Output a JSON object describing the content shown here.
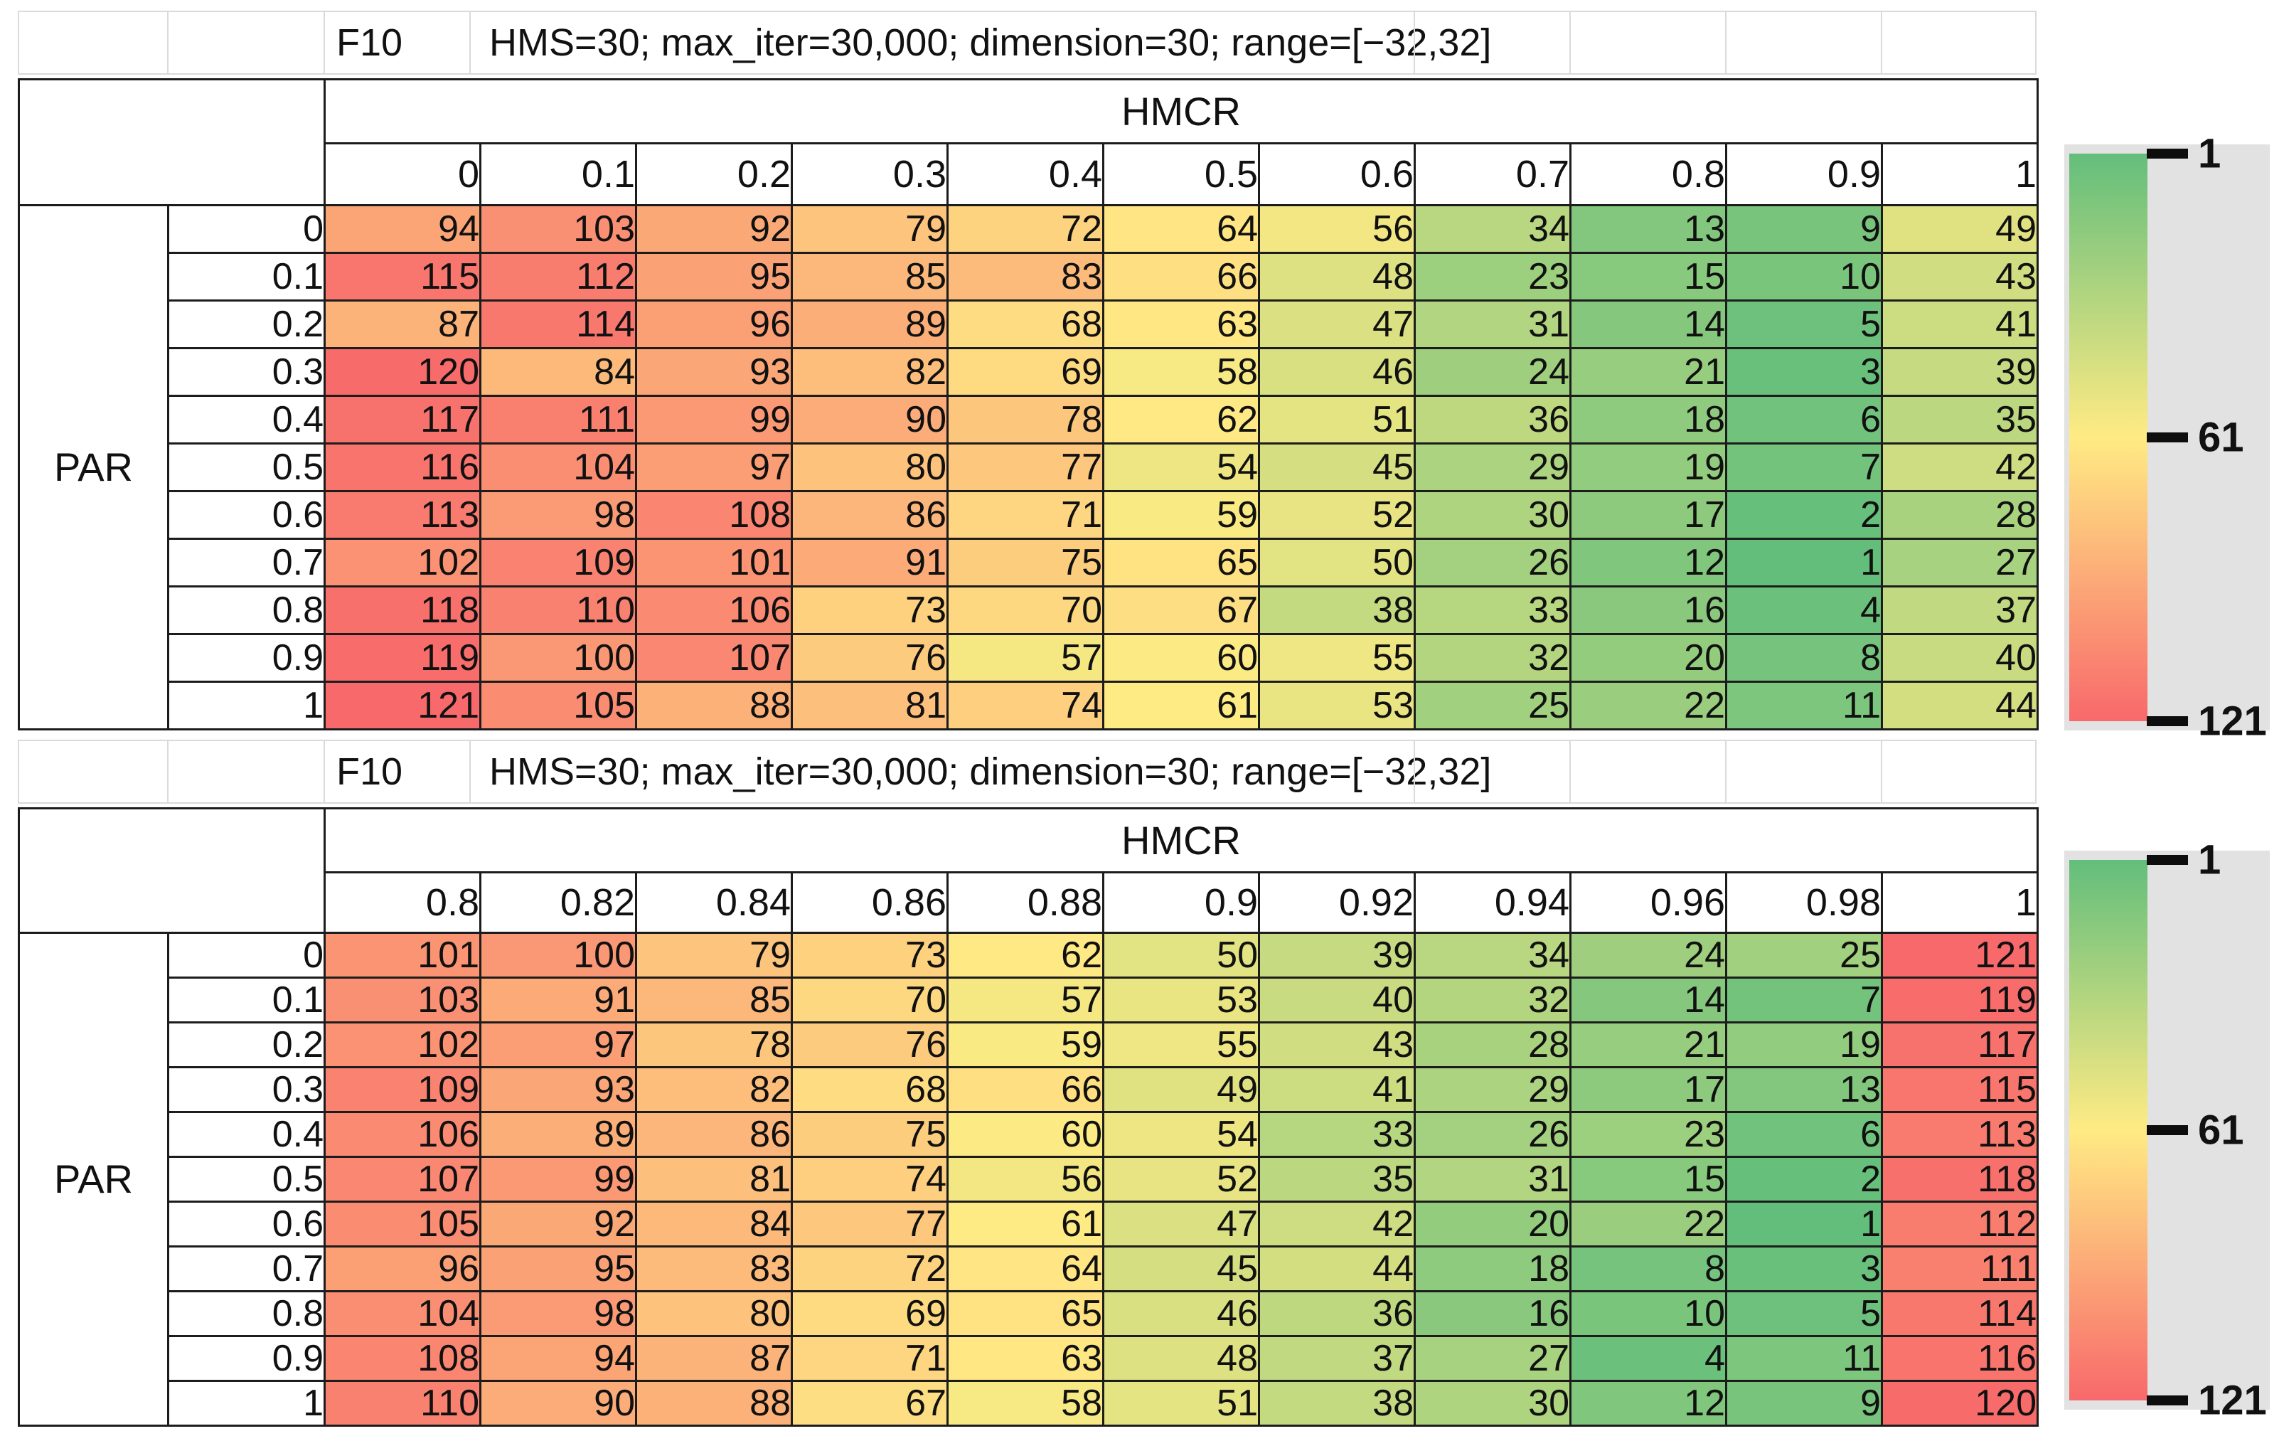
{
  "sheet": {
    "corner_label": "",
    "legend_bg": "#e2e2e2",
    "grid_line_color": "#1c1c1c",
    "title_grid_color": "#dadada"
  },
  "colors": {
    "scale_min_color": "#63BE7B",
    "scale_mid_color": "#FFEB84",
    "scale_max_color": "#F8696B",
    "scale_min": 1,
    "scale_mid": 61,
    "scale_max": 121,
    "tick_color": "#0d0d0d",
    "legend_bg": "#e2e2e2"
  },
  "chart_data": [
    {
      "type": "heatmap",
      "title": "F10",
      "subtitle": "HMS=30; max_iter=30,000; dimension=30; range=[−32,32]",
      "x_label": "HMCR",
      "y_label": "PAR",
      "x": [
        "0",
        "0.1",
        "0.2",
        "0.3",
        "0.4",
        "0.5",
        "0.6",
        "0.7",
        "0.8",
        "0.9",
        "1"
      ],
      "y": [
        "0",
        "0.1",
        "0.2",
        "0.3",
        "0.4",
        "0.5",
        "0.6",
        "0.7",
        "0.8",
        "0.9",
        "1"
      ],
      "values": [
        [
          94,
          103,
          92,
          79,
          72,
          64,
          56,
          34,
          13,
          9,
          49
        ],
        [
          115,
          112,
          95,
          85,
          83,
          66,
          48,
          23,
          15,
          10,
          43
        ],
        [
          87,
          114,
          96,
          89,
          68,
          63,
          47,
          31,
          14,
          5,
          41
        ],
        [
          120,
          84,
          93,
          82,
          69,
          58,
          46,
          24,
          21,
          3,
          39
        ],
        [
          117,
          111,
          99,
          90,
          78,
          62,
          51,
          36,
          18,
          6,
          35
        ],
        [
          116,
          104,
          97,
          80,
          77,
          54,
          45,
          29,
          19,
          7,
          42
        ],
        [
          113,
          98,
          108,
          86,
          71,
          59,
          52,
          30,
          17,
          2,
          28
        ],
        [
          102,
          109,
          101,
          91,
          75,
          65,
          50,
          26,
          12,
          1,
          27
        ],
        [
          118,
          110,
          106,
          73,
          70,
          67,
          38,
          33,
          16,
          4,
          37
        ],
        [
          119,
          100,
          107,
          76,
          57,
          60,
          55,
          32,
          20,
          8,
          40
        ],
        [
          121,
          105,
          88,
          81,
          74,
          61,
          53,
          25,
          22,
          11,
          44
        ]
      ],
      "value_range": [
        1,
        121
      ],
      "legend_ticks": [
        "1",
        "61",
        "121"
      ],
      "legend_position": "right",
      "grid": true
    },
    {
      "type": "heatmap",
      "title": "F10",
      "subtitle": "HMS=30; max_iter=30,000; dimension=30; range=[−32,32]",
      "x_label": "HMCR",
      "y_label": "PAR",
      "x": [
        "0.8",
        "0.82",
        "0.84",
        "0.86",
        "0.88",
        "0.9",
        "0.92",
        "0.94",
        "0.96",
        "0.98",
        "1"
      ],
      "y": [
        "0",
        "0.1",
        "0.2",
        "0.3",
        "0.4",
        "0.5",
        "0.6",
        "0.7",
        "0.8",
        "0.9",
        "1"
      ],
      "values": [
        [
          101,
          100,
          79,
          73,
          62,
          50,
          39,
          34,
          24,
          25,
          121
        ],
        [
          103,
          91,
          85,
          70,
          57,
          53,
          40,
          32,
          14,
          7,
          119
        ],
        [
          102,
          97,
          78,
          76,
          59,
          55,
          43,
          28,
          21,
          19,
          117
        ],
        [
          109,
          93,
          82,
          68,
          66,
          49,
          41,
          29,
          17,
          13,
          115
        ],
        [
          106,
          89,
          86,
          75,
          60,
          54,
          33,
          26,
          23,
          6,
          113
        ],
        [
          107,
          99,
          81,
          74,
          56,
          52,
          35,
          31,
          15,
          2,
          118
        ],
        [
          105,
          92,
          84,
          77,
          61,
          47,
          42,
          20,
          22,
          1,
          112
        ],
        [
          96,
          95,
          83,
          72,
          64,
          45,
          44,
          18,
          8,
          3,
          111
        ],
        [
          104,
          98,
          80,
          69,
          65,
          46,
          36,
          16,
          10,
          5,
          114
        ],
        [
          108,
          94,
          87,
          71,
          63,
          48,
          37,
          27,
          4,
          11,
          116
        ],
        [
          110,
          90,
          88,
          67,
          58,
          51,
          38,
          30,
          12,
          9,
          120
        ]
      ],
      "value_range": [
        1,
        121
      ],
      "legend_ticks": [
        "1",
        "61",
        "121"
      ],
      "legend_position": "right",
      "grid": true
    }
  ]
}
